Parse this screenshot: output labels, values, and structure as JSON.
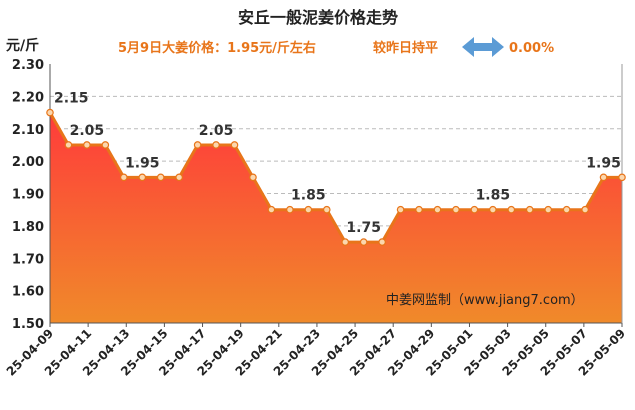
{
  "chart_data": {
    "type": "area",
    "title": "安丘一般泥姜价格走势",
    "subtitle": {
      "price_text": "5月9日大姜价格：1.95元/斤左右",
      "change_label": "较昨日持平",
      "change_value": "0.00%"
    },
    "ylabel": "元/斤",
    "ylim": [
      1.5,
      2.3
    ],
    "yticks": [
      "2.30",
      "2.20",
      "2.10",
      "2.00",
      "1.90",
      "1.80",
      "1.70",
      "1.60",
      "1.50"
    ],
    "grid": true,
    "watermark": "中姜网监制（www.jiang7.com）",
    "x_labels": [
      "25-04-09",
      "25-04-11",
      "25-04-13",
      "25-04-15",
      "25-04-17",
      "25-04-19",
      "25-04-21",
      "25-04-23",
      "25-04-25",
      "25-04-27",
      "25-04-29",
      "25-05-01",
      "25-05-03",
      "25-05-05",
      "25-05-07",
      "25-05-09"
    ],
    "values": [
      2.15,
      2.05,
      2.05,
      2.05,
      1.95,
      1.95,
      1.95,
      1.95,
      2.05,
      2.05,
      2.05,
      1.95,
      1.85,
      1.85,
      1.85,
      1.85,
      1.75,
      1.75,
      1.75,
      1.85,
      1.85,
      1.85,
      1.85,
      1.85,
      1.85,
      1.85,
      1.85,
      1.85,
      1.85,
      1.85,
      1.95,
      1.95
    ],
    "data_labels": [
      {
        "index": 0,
        "text": "2.15"
      },
      {
        "index": 2,
        "text": "2.05"
      },
      {
        "index": 5,
        "text": "1.95"
      },
      {
        "index": 9,
        "text": "2.05"
      },
      {
        "index": 14,
        "text": "1.85"
      },
      {
        "index": 17,
        "text": "1.75"
      },
      {
        "index": 24,
        "text": "1.85"
      },
      {
        "index": 30,
        "text": "1.95"
      }
    ],
    "colors": {
      "line": "#e8751a",
      "fill_top": "#ff3b3b",
      "fill_bottom": "#f08a2a",
      "arrow": "#5b9bd5",
      "grid": "#bbbbbb"
    }
  }
}
